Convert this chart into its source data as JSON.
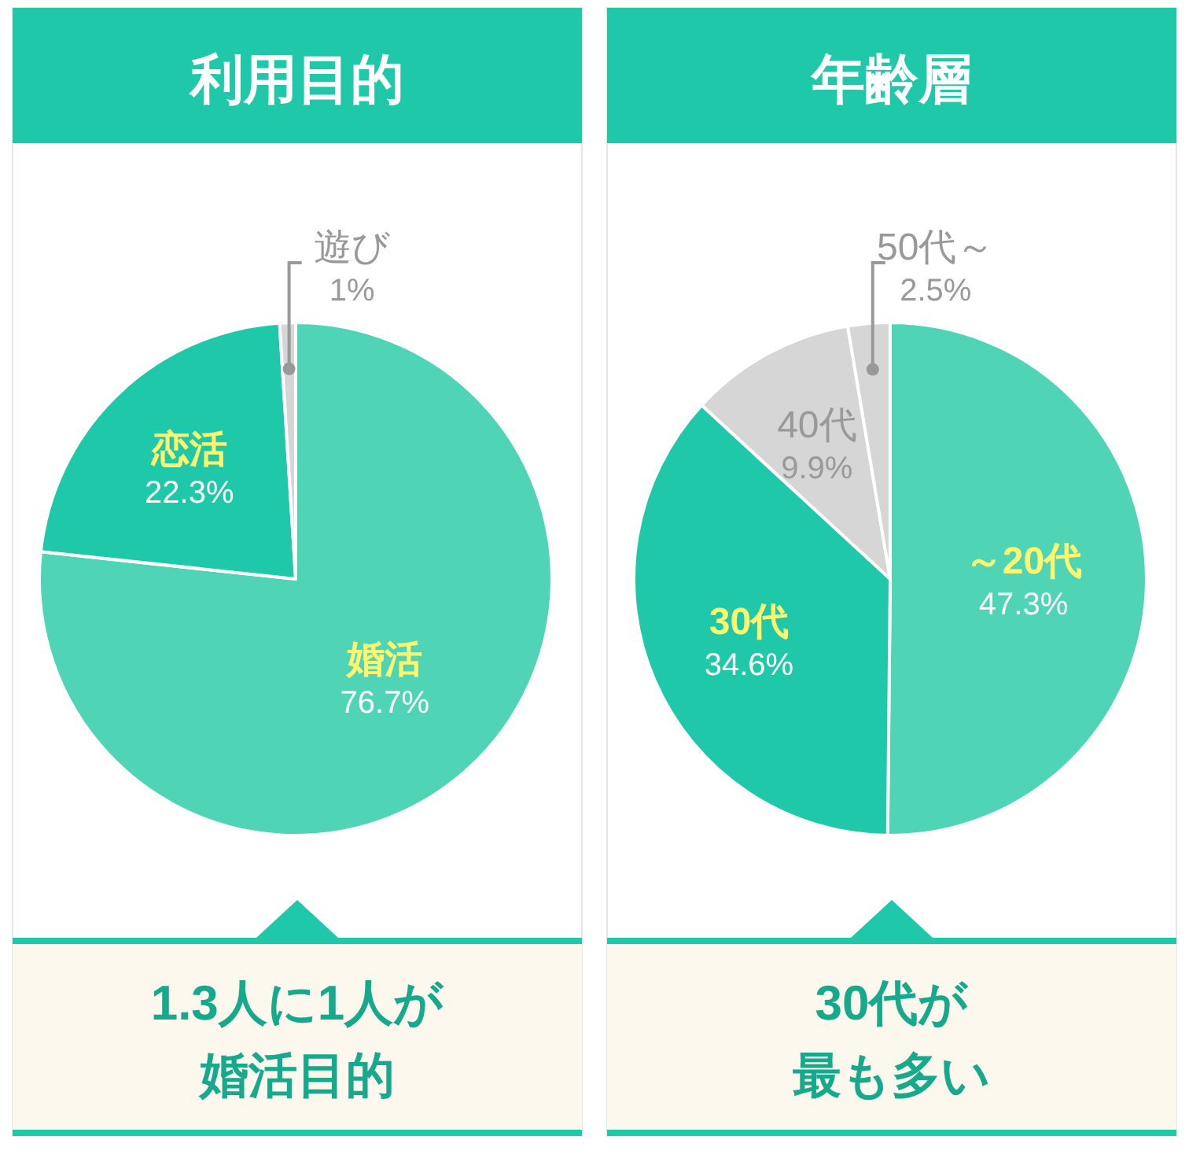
{
  "chart_data": [
    {
      "type": "pie",
      "title": "利用目的",
      "categories": [
        "婚活",
        "恋活",
        "遊び"
      ],
      "values": [
        76.7,
        22.3,
        1
      ],
      "value_labels": [
        "76.7%",
        "22.3%",
        "1%"
      ],
      "colors": [
        "#4fd5b5",
        "#1fc8a8",
        "#d6d6d6"
      ],
      "annotations": [
        "1.3人に1人が",
        "婚活目的"
      ]
    },
    {
      "type": "pie",
      "title": "年齢層",
      "categories": [
        "～20代",
        "30代",
        "40代",
        "50代～"
      ],
      "values": [
        47.3,
        34.6,
        9.9,
        2.5
      ],
      "value_labels": [
        "47.3%",
        "34.6%",
        "9.9%",
        "2.5%"
      ],
      "colors": [
        "#4fd5b5",
        "#1fc8a8",
        "#d6d6d6",
        "#d6d6d6"
      ],
      "annotations": [
        "30代が",
        "最も多い"
      ]
    }
  ]
}
